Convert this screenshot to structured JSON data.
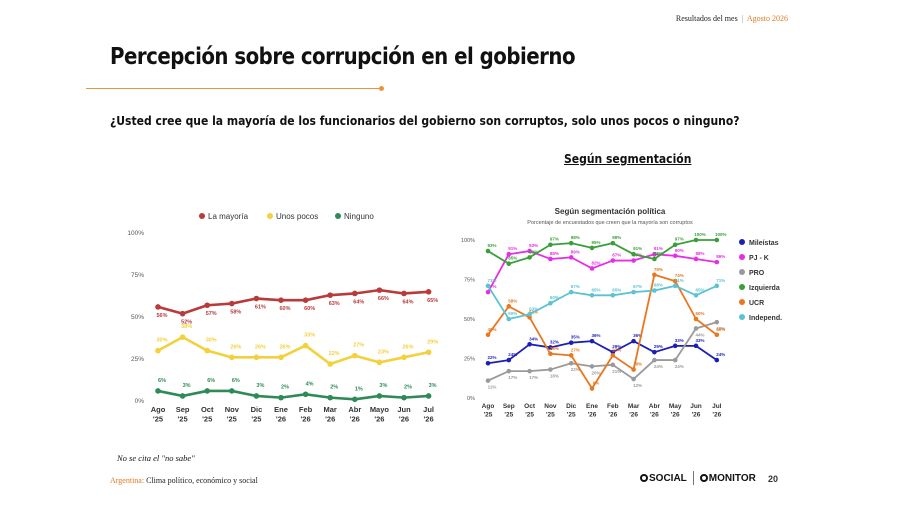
{
  "header": {
    "label": "Resultados del mes",
    "separator": "|",
    "month": "Agosto 2026"
  },
  "title": "Percepción sobre corrupción en el gobierno",
  "question": "¿Usted cree que la mayoría de los funcionarios del gobierno son corruptos, solo unos pocos o ninguno?",
  "segment_title": "Según segmentación",
  "note": "No se cita el \"no sabe\"",
  "footer": {
    "country": "Argentina:",
    "subtitle": "Clima político, económico y social",
    "logo_social": "SOCIAL",
    "logo_monitor": "MONITOR",
    "page": "20"
  },
  "chart_data": [
    {
      "type": "line",
      "categories": [
        "Ago\n'25",
        "Sep\n'25",
        "Oct\n'25",
        "Nov\n'25",
        "Dic\n'25",
        "Ene\n'26",
        "Feb\n'26",
        "Mar\n'26",
        "Abr\n'26",
        "Mayo\n'26",
        "Jun\n'26",
        "Jul\n'26"
      ],
      "ylim": [
        0,
        100
      ],
      "yticks": [
        "0%",
        "25%",
        "50%",
        "75%",
        "100%"
      ],
      "legend": "top",
      "series": [
        {
          "name": "La mayoría",
          "color": "#b83a3a",
          "values": [
            56,
            52,
            57,
            58,
            61,
            60,
            60,
            63,
            64,
            66,
            64,
            65
          ],
          "labels": [
            "56%",
            "52%",
            "57%",
            "58%",
            "61%",
            "60%",
            "60%",
            "63%",
            "64%",
            "66%",
            "64%",
            "65%"
          ]
        },
        {
          "name": "Unos pocos",
          "color": "#f2d13c",
          "values": [
            30,
            38,
            30,
            26,
            26,
            26,
            33,
            22,
            27,
            23,
            26,
            29
          ],
          "labels": [
            "30%",
            "38%",
            "30%",
            "26%",
            "26%",
            "26%",
            "33%",
            "22%",
            "27%",
            "23%",
            "26%",
            "29%"
          ]
        },
        {
          "name": "Ninguno",
          "color": "#2e8b57",
          "values": [
            6,
            3,
            6,
            6,
            3,
            2,
            4,
            2,
            1,
            3,
            2,
            3
          ],
          "labels": [
            "6%",
            "3%",
            "6%",
            "6%",
            "3%",
            "2%",
            "4%",
            "2%",
            "1%",
            "3%",
            "2%",
            "3%"
          ]
        }
      ]
    },
    {
      "type": "line",
      "title": "Según segmentación política",
      "subtitle": "Porcentaje de encuestados que creen que la mayoría son corruptos",
      "categories": [
        "Ago\n'25",
        "Sep\n'25",
        "Oct\n'25",
        "Nov\n'25",
        "Dic\n'25",
        "Ene\n'26",
        "Feb\n'26",
        "Mar\n'26",
        "Abr\n'26",
        "May\n'26",
        "Jun\n'26",
        "Jul\n'26"
      ],
      "ylim": [
        0,
        100
      ],
      "yticks": [
        "0%",
        "25%",
        "50%",
        "75%",
        "100%"
      ],
      "legend": "right",
      "series": [
        {
          "name": "Mileístas",
          "color": "#1c1fb5",
          "values": [
            22,
            24,
            34,
            32,
            35,
            36,
            29,
            36,
            29,
            33,
            33,
            24
          ],
          "labels": [
            "22%",
            "24%",
            "34%",
            "32%",
            "35%",
            "36%",
            "29%",
            "36%",
            "29%",
            "33%",
            "33%",
            "24%"
          ]
        },
        {
          "name": "PJ - K",
          "color": "#e62ee6",
          "values": [
            67,
            91,
            93,
            88,
            89,
            82,
            87,
            87,
            91,
            90,
            88,
            86
          ],
          "labels": [
            "67%",
            "91%",
            "93%",
            "88%",
            "89%",
            "82%",
            "87%",
            "87%",
            "91%",
            "90%",
            "88%",
            "86%"
          ]
        },
        {
          "name": "PRO",
          "color": "#9a9a9a",
          "values": [
            11,
            17,
            17,
            18,
            22,
            20,
            21,
            12,
            24,
            24,
            44,
            48
          ],
          "labels": [
            "11%",
            "17%",
            "17%",
            "18%",
            "22%",
            "20%",
            "21%",
            "12%",
            "24%",
            "24%",
            "44%",
            "48%"
          ]
        },
        {
          "name": "Izquierda",
          "color": "#3a9e3a",
          "values": [
            93,
            85,
            89,
            97,
            98,
            95,
            98,
            91,
            88,
            97,
            100,
            100
          ],
          "labels": [
            "93%",
            "85%",
            "89%",
            "97%",
            "98%",
            "95%",
            "98%",
            "91%",
            "88%",
            "97%",
            "100%",
            "100%"
          ]
        },
        {
          "name": "UCR",
          "color": "#e8771e",
          "values": [
            40,
            58,
            51,
            28,
            27,
            6,
            27,
            18,
            78,
            74,
            50,
            40
          ],
          "labels": [
            "40%",
            "58%",
            "51%",
            "28%",
            "27%",
            "6%",
            "27%",
            "18%",
            "78%",
            "74%",
            "50%",
            "40%"
          ]
        },
        {
          "name": "Independ.",
          "color": "#5bc3d1",
          "values": [
            71,
            50,
            53,
            60,
            67,
            65,
            65,
            67,
            68,
            71,
            65,
            71
          ],
          "labels": [
            "71%",
            "50%",
            "53%",
            "60%",
            "67%",
            "65%",
            "65%",
            "67%",
            "68%",
            "71%",
            "65%",
            "71%"
          ]
        }
      ]
    }
  ]
}
